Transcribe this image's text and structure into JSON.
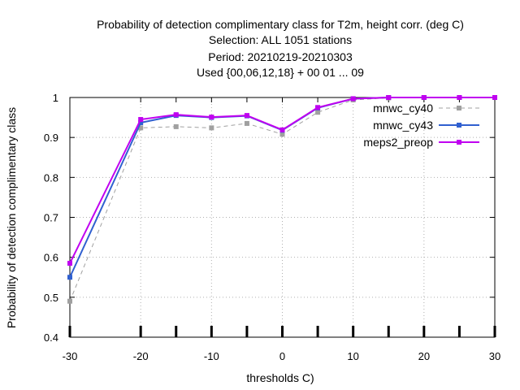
{
  "chart_data": {
    "type": "line",
    "title_lines": [
      "Probability of detection complimentary class  for T2m, height corr. (deg C)",
      "Selection: ALL    1051 stations",
      "Period: 20210219-20210303",
      "Used {00,06,12,18} + 00 01 ... 09"
    ],
    "xlabel": "thresholds C)",
    "ylabel": "Probability of detection complimentary class",
    "xlim": [
      -30,
      30
    ],
    "ylim": [
      0.4,
      1.0
    ],
    "xticks": [
      "-30",
      "-20",
      "-10",
      "0",
      "10",
      "20",
      "30"
    ],
    "xtick_values": [
      -30,
      -20,
      -10,
      0,
      10,
      20,
      30
    ],
    "yticks": [
      "0.4",
      "0.5",
      "0.6",
      "0.7",
      "0.8",
      "0.9",
      "1"
    ],
    "ytick_values": [
      0.4,
      0.5,
      0.6,
      0.7,
      0.8,
      0.9,
      1.0
    ],
    "grid": true,
    "legend_position": "top-right",
    "x": [
      -30,
      -20,
      -15,
      -10,
      -5,
      0,
      5,
      10,
      15,
      20,
      25,
      30
    ],
    "series": [
      {
        "name": "mnwc_cy40",
        "color": "#a0a0a0",
        "dashed": true,
        "values": [
          0.49,
          0.924,
          0.927,
          0.924,
          0.935,
          0.908,
          0.963,
          0.994,
          0.999,
          1.0,
          1.0,
          1.0
        ]
      },
      {
        "name": "mnwc_cy43",
        "color": "#3060d0",
        "dashed": false,
        "values": [
          0.55,
          0.937,
          0.955,
          0.95,
          0.954,
          0.918,
          0.974,
          0.997,
          1.0,
          1.0,
          1.0,
          1.0
        ]
      },
      {
        "name": "meps2_preop",
        "color": "#c000f0",
        "dashed": false,
        "values": [
          0.585,
          0.945,
          0.957,
          0.951,
          0.955,
          0.919,
          0.975,
          0.997,
          1.0,
          1.0,
          1.0,
          1.0
        ]
      }
    ]
  }
}
